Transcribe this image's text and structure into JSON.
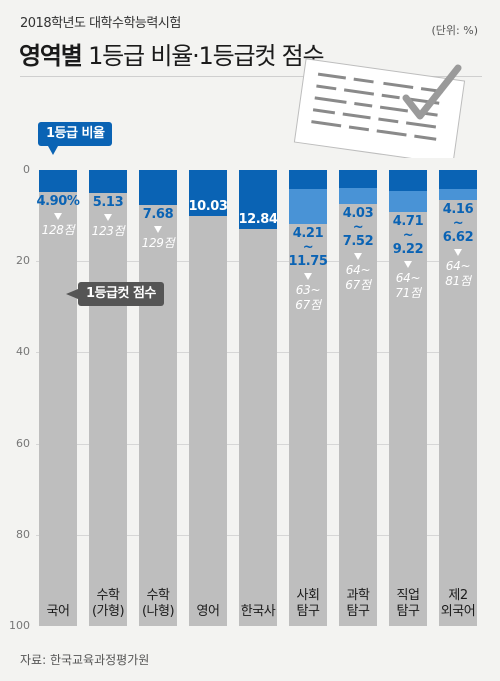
{
  "header": {
    "supertitle": "2018학년도 대학수학능력시험",
    "title_bold": "영역별",
    "title_rest": " 1등급 비율·1등급컷 점수",
    "unit": "(단위: %)"
  },
  "legend": {
    "ratio_label": "1등급 비율",
    "cut_label": "1등급컷 점수"
  },
  "source": "자료: 한국교육과정평가원",
  "colors": {
    "ratio": "#0a63b4",
    "ratio_range": "#4993d6",
    "remainder": "#bebebe"
  },
  "chart_data": {
    "type": "bar",
    "stacked": true,
    "orientation": "vertical",
    "y_inverted": true,
    "ylim": [
      0,
      100
    ],
    "yticks": [
      "0",
      "20",
      "40",
      "60",
      "80",
      "100"
    ],
    "categories": [
      "국어",
      "수학\n(가형)",
      "수학\n(나형)",
      "영어",
      "한국사",
      "사회\n탐구",
      "과학\n탐구",
      "직업\n탐구",
      "제2\n외국어"
    ],
    "series": [
      {
        "name": "1등급 비율",
        "values": [
          4.9,
          5.13,
          7.68,
          10.03,
          12.84,
          4.21,
          4.03,
          4.71,
          4.16
        ],
        "max_values": [
          null,
          null,
          null,
          null,
          null,
          11.75,
          7.52,
          9.22,
          6.62
        ]
      }
    ],
    "value_labels": [
      "4.90%",
      "5.13",
      "7.68",
      "10.03",
      "12.84",
      "4.21\n~\n11.75",
      "4.03\n~\n7.52",
      "4.71\n~\n9.22",
      "4.16\n~\n6.62"
    ],
    "cut_scores": [
      "128점",
      "123점",
      "129점",
      null,
      null,
      "63~\n67점",
      "64~\n67점",
      "64~\n71점",
      "64~\n81점"
    ]
  }
}
